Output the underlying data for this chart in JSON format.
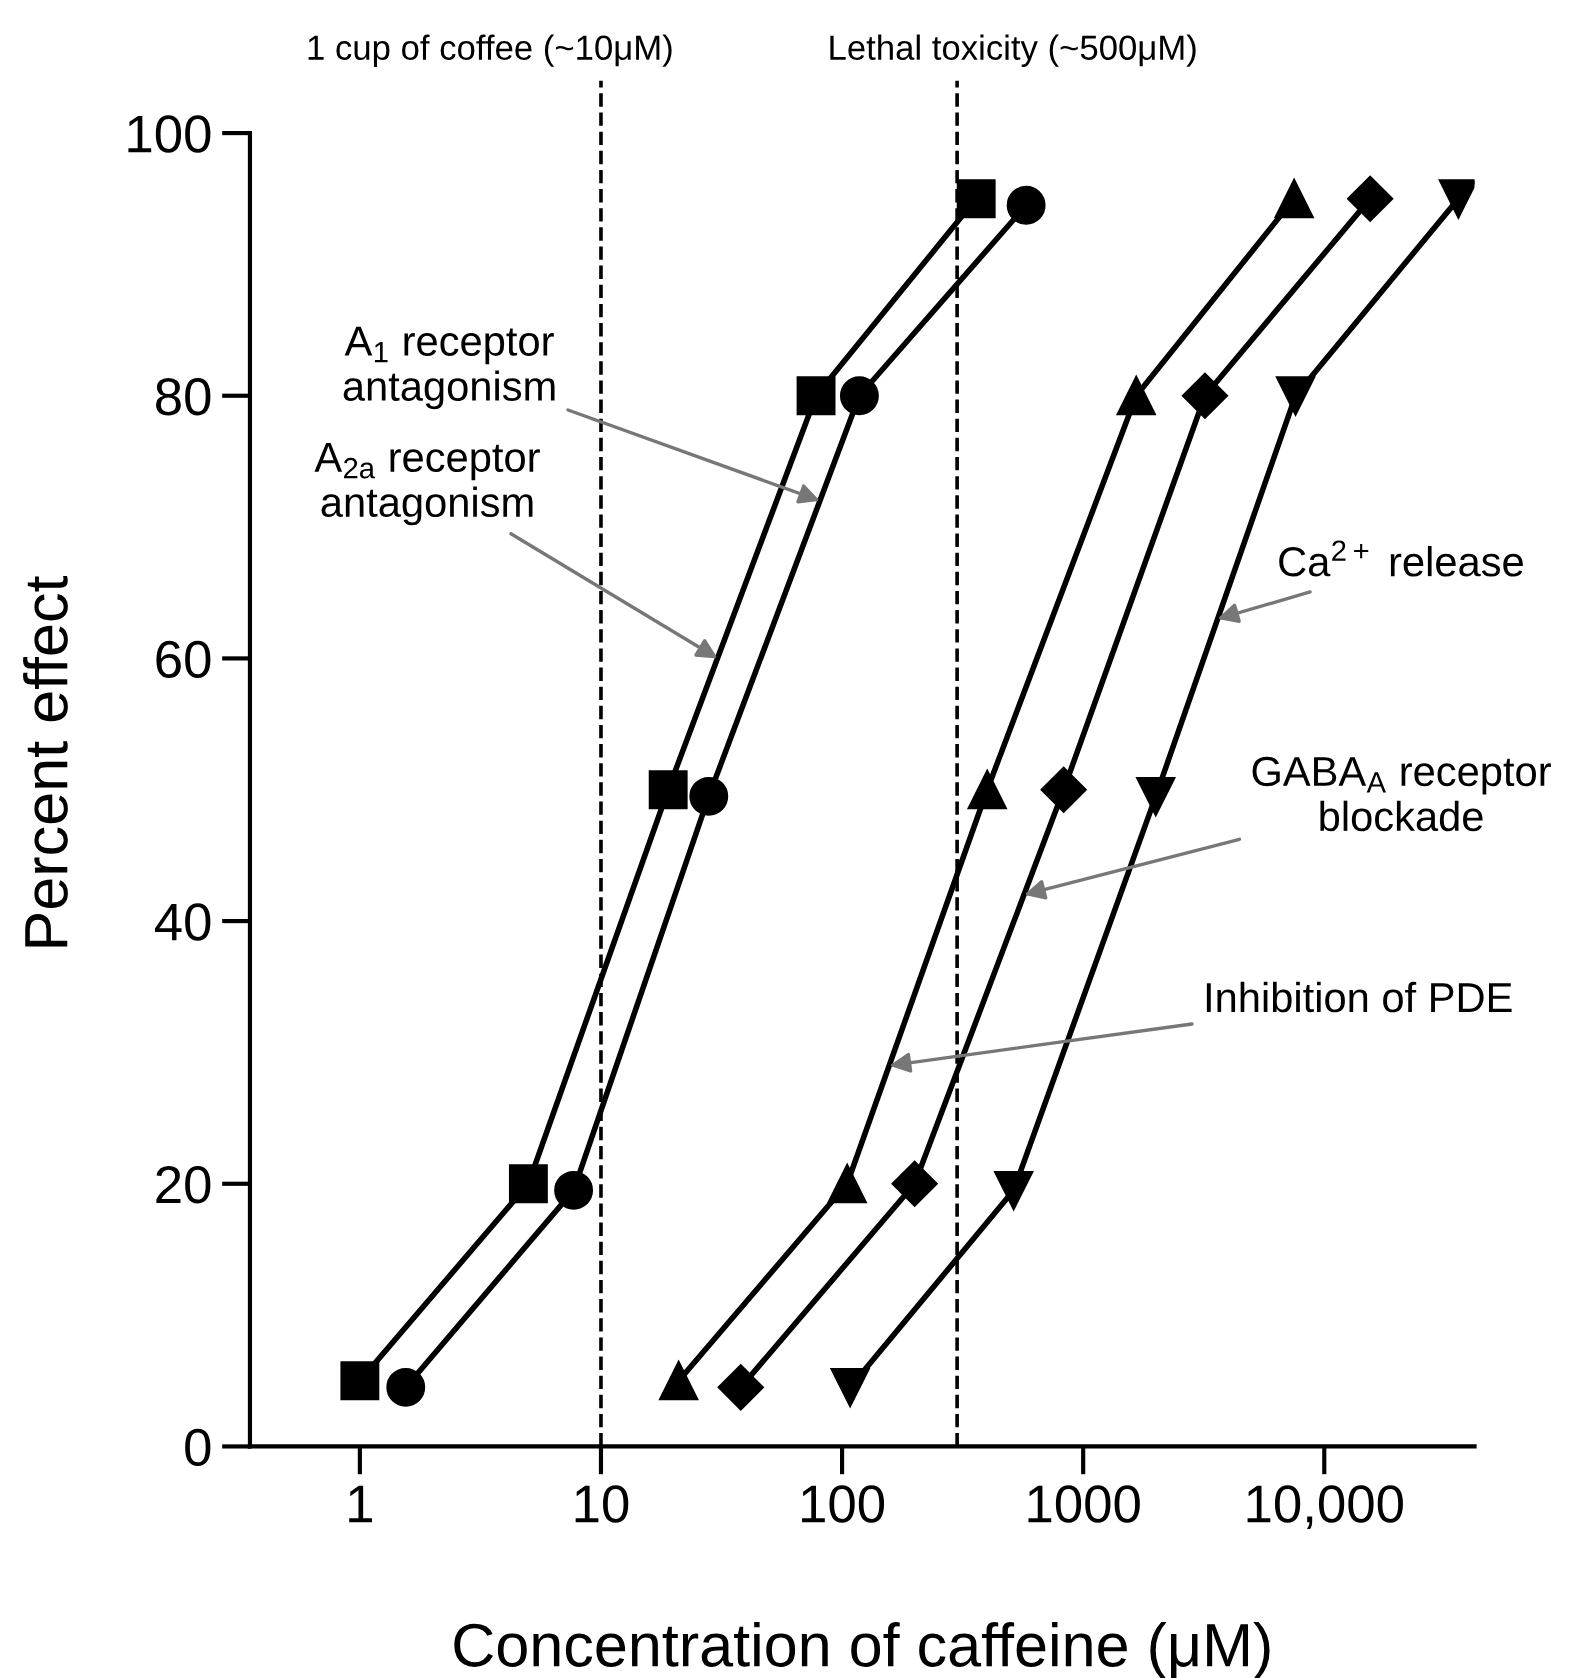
{
  "chart_data": {
    "type": "line",
    "xlabel": "Concentration of caffeine (μM)",
    "ylabel": "Percent effect",
    "log": "x",
    "xlim": [
      0.35,
      42000
    ],
    "ylim": [
      0,
      104
    ],
    "xticks": [
      1,
      10,
      100,
      1000,
      {
        "value": 10000,
        "label": "10,000"
      }
    ],
    "yticks": [
      0,
      20,
      40,
      60,
      80,
      100
    ],
    "grid": false,
    "legend": false,
    "line_style": "solid",
    "series": [
      {
        "color": "#000000",
        "marker": "square",
        "x": [
          1,
          5,
          19,
          78,
          360
        ],
        "values": [
          5,
          20,
          50,
          80,
          95
        ]
      },
      {
        "color": "#000000",
        "marker": "circle",
        "x": [
          1.55,
          7.7,
          28,
          118,
          580
        ],
        "values": [
          4.5,
          19.5,
          49.5,
          80,
          94.5
        ]
      },
      {
        "color": "#000000",
        "marker": "triangle",
        "x": [
          21,
          105,
          400,
          1660,
          7500
        ],
        "values": [
          5,
          20,
          50,
          80,
          95
        ]
      },
      {
        "color": "#000000",
        "marker": "diamond",
        "x": [
          38,
          200,
          830,
          3200,
          15500
        ],
        "values": [
          4.5,
          20,
          50,
          80,
          95
        ]
      },
      {
        "color": "#000000",
        "marker": "triangle_down",
        "x": [
          108,
          515,
          2000,
          7600,
          36000
        ],
        "values": [
          4.5,
          19.5,
          49.5,
          80,
          95
        ]
      }
    ],
    "ref_lines": [
      {
        "axis": "x",
        "value": 10,
        "label": "1 cup of coffee (~10μM)",
        "color": "#000000",
        "line_style": "dashed"
      },
      {
        "axis": "x",
        "value": 300,
        "label": "Lethal toxicity (~500μM)",
        "color": "#000000",
        "line_style": "dashed"
      }
    ],
    "annotations": [
      {
        "text": "A$_{1}$ receptor\nantagonism",
        "x": 81,
        "y": 72
      },
      {
        "text": "A$_{2a}$ receptor\nantagonism",
        "x": 30.5,
        "y": 60
      },
      {
        "text": "Ca$^{2+}$ release",
        "x": 3600,
        "y": 63
      },
      {
        "text": "GABA$_{A}$ receptor\nblockade",
        "x": 568,
        "y": 42
      },
      {
        "text": "Inhibition of PDE",
        "x": 157,
        "y": 29
      }
    ]
  }
}
